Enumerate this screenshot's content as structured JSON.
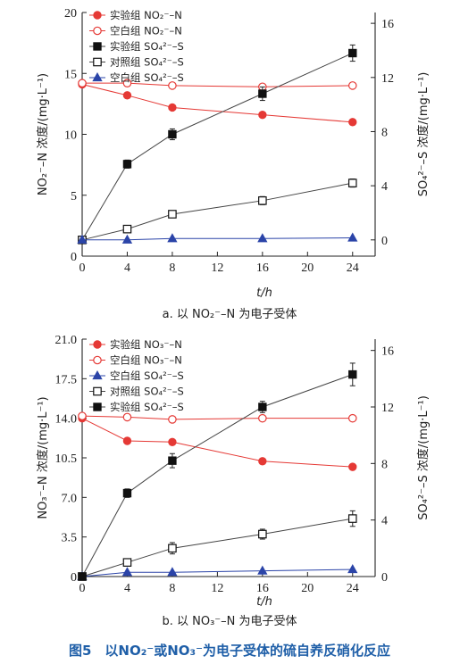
{
  "figure_caption": "图5　以NO₂⁻或NO₃⁻为电子受体的硫自养反硝化反应",
  "chart_data": [
    {
      "type": "line",
      "panel_caption": "a. 以 NO₂⁻–N 为电子受体",
      "xlabel": "t/h",
      "ylabel_left": "NO₂⁻–N 浓度/(mg·L⁻¹)",
      "ylabel_right": "SO₄²⁻–S 浓度/(mg·L⁻¹)",
      "xlim": [
        0,
        26
      ],
      "ylim_left": [
        0,
        20
      ],
      "ylim_right": [
        -1.2,
        16.8
      ],
      "x_ticks": [
        0,
        4,
        8,
        12,
        16,
        20,
        24
      ],
      "y_left_ticks": [
        0,
        5,
        10,
        15,
        20
      ],
      "y_left_tick_labels": [
        "0",
        "5",
        "10",
        "15",
        "20"
      ],
      "y_right_ticks": [
        0,
        4,
        8,
        12,
        16
      ],
      "legend_position": "top-left",
      "series": [
        {
          "name": "实验组 NO₂⁻–N",
          "axis": "left",
          "marker": "circle-filled",
          "color": "#e53935",
          "x": [
            0,
            4,
            8,
            16,
            24
          ],
          "y": [
            14.1,
            13.2,
            12.2,
            11.6,
            11.0
          ],
          "err": [
            0,
            0,
            0,
            0,
            0
          ]
        },
        {
          "name": "空白组 NO₂⁻–N",
          "axis": "left",
          "marker": "circle-open",
          "color": "#e53935",
          "x": [
            0,
            4,
            8,
            16,
            24
          ],
          "y": [
            14.2,
            14.2,
            14.0,
            13.9,
            14.0
          ],
          "err": [
            0,
            0,
            0,
            0,
            0
          ]
        },
        {
          "name": "实验组 SO₄²⁻–S",
          "axis": "right",
          "marker": "square-filled",
          "color": "#111111",
          "x": [
            0,
            4,
            8,
            16,
            24
          ],
          "y": [
            0,
            5.6,
            7.8,
            10.8,
            13.8
          ],
          "err": [
            0,
            0.3,
            0.4,
            0.5,
            0.6
          ]
        },
        {
          "name": "对照组 SO₄²⁻–S",
          "axis": "right",
          "marker": "square-open",
          "color": "#111111",
          "x": [
            0,
            4,
            8,
            16,
            24
          ],
          "y": [
            0,
            0.8,
            1.9,
            2.9,
            4.2
          ],
          "err": [
            0,
            0,
            0.2,
            0.3,
            0.3
          ]
        },
        {
          "name": "空白组 SO₄²⁻–S",
          "axis": "right",
          "marker": "triangle-filled",
          "color": "#2b44a8",
          "x": [
            0,
            4,
            8,
            16,
            24
          ],
          "y": [
            0,
            0,
            0.1,
            0.1,
            0.15
          ],
          "err": [
            0,
            0,
            0,
            0,
            0
          ]
        }
      ]
    },
    {
      "type": "line",
      "panel_caption": "b. 以 NO₃⁻–N 为电子受体",
      "xlabel": "t/h",
      "ylabel_left": "NO₃⁻–N 浓度/(mg·L⁻¹)",
      "ylabel_right": "SO₄²⁻–S 浓度/(mg·L⁻¹)",
      "xlim": [
        0,
        26
      ],
      "ylim_left": [
        0,
        21
      ],
      "ylim_right": [
        0,
        16.8
      ],
      "x_ticks": [
        0,
        4,
        8,
        12,
        16,
        20,
        24
      ],
      "y_left_ticks": [
        0,
        3.5,
        7,
        10.5,
        14,
        17.5,
        21
      ],
      "y_left_tick_labels": [
        "0",
        "3.5",
        "7.0",
        "10.5",
        "14.0",
        "17.5",
        "21.0"
      ],
      "y_right_ticks": [
        0,
        4,
        8,
        12,
        16
      ],
      "legend_position": "top-left",
      "series": [
        {
          "name": "实验组 NO₃⁻–N",
          "axis": "left",
          "marker": "circle-filled",
          "color": "#e53935",
          "x": [
            0,
            4,
            8,
            16,
            24
          ],
          "y": [
            14.0,
            12.0,
            11.9,
            10.2,
            9.7
          ],
          "err": [
            0,
            0,
            0,
            0,
            0
          ]
        },
        {
          "name": "空白组 NO₃⁻–N",
          "axis": "left",
          "marker": "circle-open",
          "color": "#e53935",
          "x": [
            0,
            4,
            8,
            16,
            24
          ],
          "y": [
            14.2,
            14.1,
            13.9,
            14.0,
            14.0
          ],
          "err": [
            0,
            0,
            0,
            0,
            0
          ]
        },
        {
          "name": "空白组 SO₄²⁻–S",
          "axis": "right",
          "marker": "triangle-filled",
          "color": "#2b44a8",
          "x": [
            0,
            4,
            8,
            16,
            24
          ],
          "y": [
            0,
            0.3,
            0.3,
            0.4,
            0.5
          ],
          "err": [
            0,
            0,
            0,
            0,
            0
          ]
        },
        {
          "name": "对照组 SO₄²⁻–S",
          "axis": "right",
          "marker": "square-open",
          "color": "#111111",
          "x": [
            0,
            4,
            8,
            16,
            24
          ],
          "y": [
            0,
            1.0,
            2.0,
            3.0,
            4.1
          ],
          "err": [
            0,
            0.15,
            0.4,
            0.35,
            0.55
          ]
        },
        {
          "name": "实验组 SO₄²⁻–S",
          "axis": "right",
          "marker": "square-filled",
          "color": "#111111",
          "x": [
            0,
            4,
            8,
            16,
            24
          ],
          "y": [
            0,
            5.9,
            8.2,
            12.0,
            14.3
          ],
          "err": [
            0,
            0.3,
            0.5,
            0.4,
            0.8
          ]
        }
      ]
    }
  ]
}
